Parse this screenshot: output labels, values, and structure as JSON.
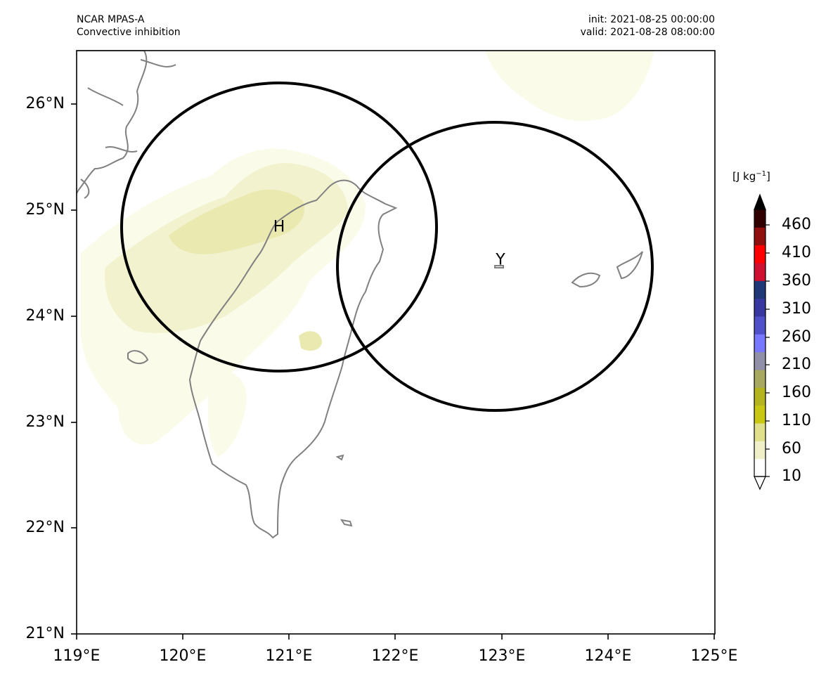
{
  "header": {
    "model": "NCAR MPAS-A",
    "field": "Convective inhibition",
    "init": "init: 2021-08-25 00:00:00",
    "valid": "valid: 2021-08-28 08:00:00"
  },
  "map": {
    "lon_range": [
      119,
      125
    ],
    "lat_range": [
      21,
      26.5
    ],
    "x_ticks": [
      "119°E",
      "120°E",
      "121°E",
      "122°E",
      "123°E",
      "124°E",
      "125°E"
    ],
    "y_ticks": [
      "26°N",
      "25°N",
      "24°N",
      "23°N",
      "22°N",
      "21°N"
    ],
    "coastline_color": "#808080",
    "circles": [
      {
        "label": "H",
        "lon": 120.9,
        "lat": 24.83
      },
      {
        "label": "Y",
        "lon": 122.95,
        "lat": 24.47
      }
    ],
    "fill_colors": [
      "#fbfbea",
      "#f2f2cf",
      "#e9e9b0"
    ]
  },
  "colorbar": {
    "unit_main": "[J kg",
    "unit_exp": "−1",
    "unit_end": "]",
    "tick_labels": [
      "460",
      "410",
      "360",
      "310",
      "260",
      "210",
      "160",
      "110",
      "60",
      "10"
    ],
    "extend": "both",
    "colors": [
      "#ffffff",
      "#f0f0c8",
      "#e0e08c",
      "#c8c814",
      "#b4b420",
      "#a8a860",
      "#9090a8",
      "#7878ff",
      "#5050c8",
      "#3838a0",
      "#203878",
      "#d01030",
      "#ff0000",
      "#901010",
      "#300000"
    ]
  }
}
